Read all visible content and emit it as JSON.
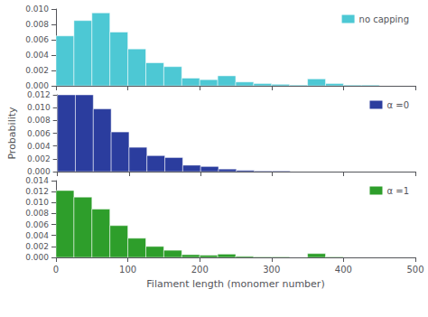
{
  "chart_data": [
    {
      "type": "histogram",
      "bins": [
        0,
        25,
        50,
        75,
        100,
        125,
        150,
        175,
        200,
        225,
        250,
        275,
        300,
        325,
        350,
        375,
        400,
        425,
        450,
        475,
        500
      ],
      "series": [
        {
          "name": "no capping",
          "color": "#4DC8D4",
          "values": [
            0.0065,
            0.0085,
            0.0095,
            0.007,
            0.0048,
            0.003,
            0.0025,
            0.001,
            0.0008,
            0.0013,
            0.0005,
            0.0003,
            0.0002,
            0.0001,
            0.0009,
            0.0003,
            0.0001,
            0.0001,
            0.0,
            0.0
          ]
        }
      ],
      "xlim": [
        0,
        500
      ],
      "xticks": [
        0,
        100,
        200,
        300,
        400,
        500
      ],
      "ylim": [
        0,
        0.01
      ],
      "yticks": [
        {
          "value": 0.0,
          "label": "0.000"
        },
        {
          "value": 0.002,
          "label": "0.002"
        },
        {
          "value": 0.004,
          "label": "0.004"
        },
        {
          "value": 0.006,
          "label": "0.006"
        },
        {
          "value": 0.008,
          "label": "0.008"
        },
        {
          "value": 0.01,
          "label": "0.010"
        }
      ],
      "tick_labels": "y",
      "grid": false,
      "legend": "upper right"
    },
    {
      "type": "histogram",
      "bins": [
        0,
        25,
        50,
        75,
        100,
        125,
        150,
        175,
        200,
        225,
        250,
        275,
        300,
        325,
        350,
        375,
        400,
        425,
        450,
        475,
        500
      ],
      "series": [
        {
          "name": "α =0",
          "color": "#2B3D9E",
          "values": [
            0.012,
            0.012,
            0.0098,
            0.0062,
            0.0038,
            0.0025,
            0.0022,
            0.001,
            0.0008,
            0.0004,
            0.0002,
            0.0001,
            0.0001,
            0.0,
            0.0,
            0.0,
            0.0,
            0.0,
            0.0,
            0.0
          ]
        }
      ],
      "ylabel": "Probability",
      "xlim": [
        0,
        500
      ],
      "xticks": [
        0,
        100,
        200,
        300,
        400,
        500
      ],
      "ylim": [
        0,
        0.012
      ],
      "yticks": [
        {
          "value": 0.0,
          "label": "0.000"
        },
        {
          "value": 0.002,
          "label": "0.002"
        },
        {
          "value": 0.004,
          "label": "0.004"
        },
        {
          "value": 0.006,
          "label": "0.006"
        },
        {
          "value": 0.008,
          "label": "0.008"
        },
        {
          "value": 0.01,
          "label": "0.010"
        },
        {
          "value": 0.012,
          "label": "0.012"
        }
      ],
      "tick_labels": "y",
      "grid": false,
      "legend": "upper right"
    },
    {
      "type": "histogram",
      "bins": [
        0,
        25,
        50,
        75,
        100,
        125,
        150,
        175,
        200,
        225,
        250,
        275,
        300,
        325,
        350,
        375,
        400,
        425,
        450,
        475,
        500
      ],
      "series": [
        {
          "name": "α =1",
          "color": "#2E9E2B",
          "values": [
            0.0122,
            0.011,
            0.0088,
            0.0058,
            0.0035,
            0.002,
            0.0013,
            0.0005,
            0.0004,
            0.0006,
            0.0002,
            0.0001,
            0.0001,
            0.0,
            0.0007,
            0.0001,
            0.0,
            0.0,
            0.0,
            0.0
          ]
        }
      ],
      "xlabel": "Filament length (monomer number)",
      "xlim": [
        0,
        500
      ],
      "xticks": [
        0,
        100,
        200,
        300,
        400,
        500
      ],
      "ylim": [
        0,
        0.014
      ],
      "yticks": [
        {
          "value": 0.0,
          "label": "0.000"
        },
        {
          "value": 0.002,
          "label": "0.002"
        },
        {
          "value": 0.004,
          "label": "0.004"
        },
        {
          "value": 0.006,
          "label": "0.006"
        },
        {
          "value": 0.008,
          "label": "0.008"
        },
        {
          "value": 0.01,
          "label": "0.010"
        },
        {
          "value": 0.012,
          "label": "0.012"
        },
        {
          "value": 0.014,
          "label": "0.014"
        }
      ],
      "grid": false,
      "legend": "upper right"
    }
  ]
}
